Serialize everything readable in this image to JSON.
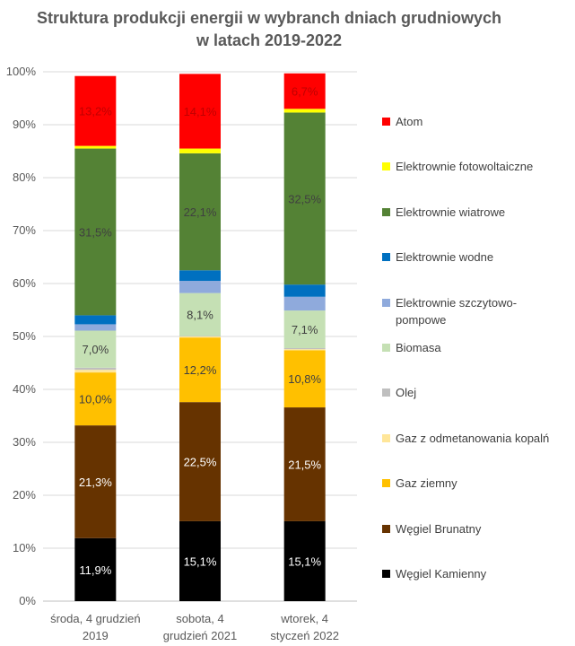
{
  "chart_data": {
    "type": "bar",
    "stacked": true,
    "title": "Struktura produkcji energii w wybranch dniach grudniowych w latach 2019-2022",
    "xlabel": "",
    "ylabel": "",
    "ylim": [
      0,
      100
    ],
    "yticks": [
      "0%",
      "10%",
      "20%",
      "30%",
      "40%",
      "50%",
      "60%",
      "70%",
      "80%",
      "90%",
      "100%"
    ],
    "categories": [
      [
        "środa, 4 grudzień",
        "2019"
      ],
      [
        "sobota, 4",
        "grudzień 2021"
      ],
      [
        "wtorek, 4",
        "styczeń 2022"
      ]
    ],
    "legend_position": "right",
    "grid": true,
    "series": [
      {
        "name": "Węgiel Kamienny",
        "color": "#000000",
        "values": [
          11.9,
          15.1,
          15.1
        ],
        "labels": [
          "11,9%",
          "15,1%",
          "15,1%"
        ],
        "label_color": "#ffffff"
      },
      {
        "name": "Węgiel Brunatny",
        "color": "#663300",
        "values": [
          21.3,
          22.5,
          21.5
        ],
        "labels": [
          "21,3%",
          "22,5%",
          "21,5%"
        ],
        "label_color": "#ffffff"
      },
      {
        "name": "Gaz  ziemny",
        "color": "#ffc000",
        "values": [
          10.0,
          12.2,
          10.8
        ],
        "labels": [
          "10,0%",
          "12,2%",
          "10,8%"
        ],
        "label_color": "#404040"
      },
      {
        "name": "Gaz z odmetanowania kopalń",
        "color": "#ffe699",
        "values": [
          0.5,
          0.2,
          0.2
        ],
        "labels": [
          "",
          "",
          ""
        ],
        "label_color": "#404040"
      },
      {
        "name": "Olej",
        "color": "#bfbfbf",
        "values": [
          0.4,
          0.1,
          0.2
        ],
        "labels": [
          "",
          "",
          ""
        ],
        "label_color": "#404040"
      },
      {
        "name": "Biomasa",
        "color": "#c5e0b4",
        "values": [
          7.0,
          8.1,
          7.1
        ],
        "labels": [
          "7,0%",
          "8,1%",
          "7,1%"
        ],
        "label_color": "#404040"
      },
      {
        "name": "Elektrownie szczytowo-pompowe",
        "color": "#8faadc",
        "values": [
          1.2,
          2.3,
          2.6
        ],
        "labels": [
          "",
          "",
          ""
        ],
        "label_color": "#404040"
      },
      {
        "name": "Elektrownie wodne",
        "color": "#0070c0",
        "values": [
          1.7,
          2.0,
          2.3
        ],
        "labels": [
          "",
          "",
          ""
        ],
        "label_color": "#404040"
      },
      {
        "name": "Elektrownie wiatrowe",
        "color": "#548235",
        "values": [
          31.5,
          22.1,
          32.5
        ],
        "labels": [
          "31,5%",
          "22,1%",
          "32,5%"
        ],
        "label_color": "#404040"
      },
      {
        "name": "Elektrownie fotowoltaiczne",
        "color": "#ffff00",
        "values": [
          0.5,
          0.9,
          0.7
        ],
        "labels": [
          "",
          "",
          ""
        ],
        "label_color": "#404040"
      },
      {
        "name": "Atom",
        "color": "#ff0000",
        "values": [
          13.2,
          14.1,
          6.7
        ],
        "labels": [
          "13,2%",
          "14,1%",
          "6,7%"
        ],
        "label_color": "#c00000"
      }
    ]
  }
}
